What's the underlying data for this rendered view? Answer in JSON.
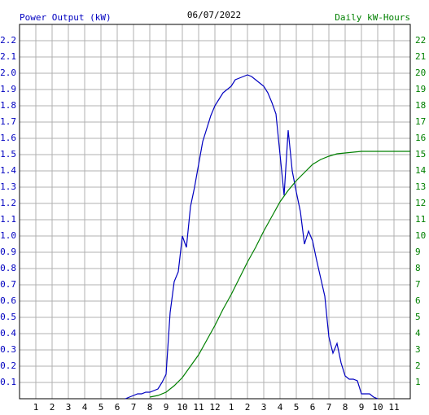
{
  "chart_data": {
    "type": "line",
    "title": "06/07/2022",
    "y_label": "Power Output (kW)",
    "y2_label": "Daily kW-Hours",
    "xlim": [
      0,
      24
    ],
    "xticks": [
      1,
      2,
      3,
      4,
      5,
      6,
      7,
      8,
      9,
      10,
      11,
      12,
      {
        "value": 13,
        "label": "1"
      },
      {
        "value": 14,
        "label": "2"
      },
      {
        "value": 15,
        "label": "3"
      },
      {
        "value": 16,
        "label": "4"
      },
      {
        "value": 17,
        "label": "5"
      },
      {
        "value": 18,
        "label": "6"
      },
      {
        "value": 19,
        "label": "7"
      },
      {
        "value": 20,
        "label": "8"
      },
      {
        "value": 21,
        "label": "9"
      },
      {
        "value": 22,
        "label": "10"
      },
      {
        "value": 23,
        "label": "11"
      }
    ],
    "ylim": [
      0,
      2.3
    ],
    "yticks": [
      0.1,
      0.2,
      0.3,
      0.4,
      0.5,
      0.6,
      0.7,
      0.8,
      0.9,
      {
        "value": 1,
        "label": "1.0"
      },
      1.1,
      1.2,
      1.3,
      1.4,
      1.5,
      1.6,
      1.7,
      1.8,
      1.9,
      {
        "value": 2,
        "label": "2.0"
      },
      2.1,
      2.2
    ],
    "y2lim": [
      0,
      23
    ],
    "y2ticks": [
      1,
      2,
      3,
      4,
      5,
      6,
      7,
      8,
      9,
      10,
      11,
      12,
      13,
      14,
      15,
      16,
      17,
      18,
      19,
      20,
      21,
      22
    ],
    "grid": true,
    "series": [
      {
        "name": "Power Output (kW)",
        "color": "#0000c0",
        "axis": "y",
        "x": [
          6.5,
          6.75,
          7,
          7.25,
          7.5,
          7.75,
          8,
          8.25,
          8.5,
          8.75,
          9,
          9.25,
          9.5,
          9.75,
          10,
          10.25,
          10.5,
          10.75,
          11,
          11.25,
          11.5,
          11.75,
          12,
          12.25,
          12.5,
          12.75,
          13,
          13.25,
          13.5,
          13.75,
          14,
          14.25,
          14.5,
          14.75,
          15,
          15.25,
          15.5,
          15.75,
          16,
          16.25,
          16.5,
          16.75,
          17,
          17.25,
          17.5,
          17.75,
          18,
          18.25,
          18.5,
          18.75,
          19,
          19.25,
          19.5,
          19.75,
          20,
          20.25,
          20.5,
          20.75,
          21,
          21.5,
          21.75,
          22
        ],
        "values": [
          0,
          0.01,
          0.02,
          0.03,
          0.03,
          0.04,
          0.04,
          0.05,
          0.06,
          0.1,
          0.15,
          0.53,
          0.72,
          0.78,
          1.0,
          0.93,
          1.18,
          1.3,
          1.44,
          1.58,
          1.66,
          1.74,
          1.8,
          1.84,
          1.88,
          1.9,
          1.92,
          1.96,
          1.97,
          1.98,
          1.99,
          1.98,
          1.96,
          1.94,
          1.92,
          1.88,
          1.82,
          1.75,
          1.5,
          1.25,
          1.65,
          1.4,
          1.27,
          1.15,
          0.95,
          1.03,
          0.97,
          0.85,
          0.74,
          0.63,
          0.38,
          0.28,
          0.34,
          0.22,
          0.14,
          0.12,
          0.12,
          0.11,
          0.03,
          0.03,
          0.01,
          0
        ]
      },
      {
        "name": "Daily kW-Hours",
        "color": "#008000",
        "axis": "y2",
        "x": [
          8,
          8.5,
          9,
          9.5,
          10,
          10.5,
          11,
          11.5,
          12,
          12.5,
          13,
          13.5,
          14,
          14.5,
          15,
          15.5,
          16,
          16.5,
          17,
          17.5,
          18,
          18.5,
          19,
          19.5,
          20,
          20.5,
          21,
          24
        ],
        "values": [
          0.1,
          0.2,
          0.4,
          0.8,
          1.3,
          2.0,
          2.7,
          3.6,
          4.5,
          5.5,
          6.4,
          7.4,
          8.4,
          9.3,
          10.3,
          11.2,
          12.1,
          12.8,
          13.4,
          13.9,
          14.4,
          14.7,
          14.9,
          15.05,
          15.1,
          15.15,
          15.2,
          15.2
        ]
      }
    ]
  }
}
